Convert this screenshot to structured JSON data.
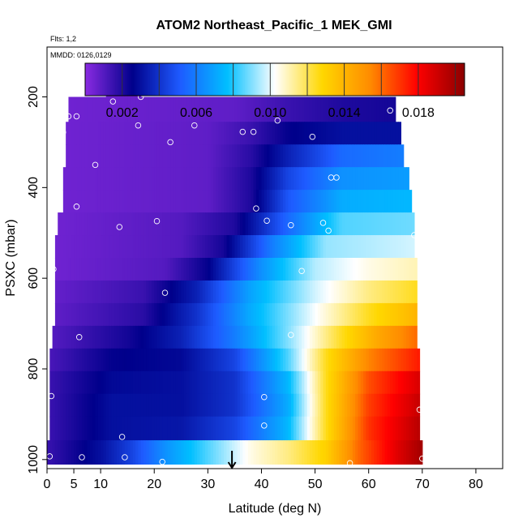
{
  "chart_data": {
    "type": "heatmap",
    "title": "ATOM2 Northeast_Pacific_1 MEK_GMI",
    "subtitle_lines": [
      "Flts: 1,2",
      "MMDD: 0126,0129"
    ],
    "xlabel": "Latitude (deg N)",
    "ylabel": "PSXC (mbar)",
    "xlim": [
      0,
      85
    ],
    "ylim": [
      1020,
      90
    ],
    "x_ticks": [
      0,
      5,
      10,
      20,
      30,
      40,
      50,
      60,
      70,
      80
    ],
    "y_ticks": [
      200,
      400,
      600,
      800,
      1000
    ],
    "colorbar": {
      "range": [
        0,
        0.0205
      ],
      "ticks": [
        "0.002",
        "0.006",
        "0.010",
        "0.014",
        "0.018"
      ],
      "tick_values": [
        0.002,
        0.006,
        0.01,
        0.014,
        0.018
      ],
      "breaks": [
        0.002,
        0.004,
        0.006,
        0.008,
        0.01,
        0.012,
        0.014,
        0.016,
        0.018,
        0.02
      ],
      "colors": [
        "#8a2be2",
        "#00008b",
        "#1e5bff",
        "#00bfff",
        "#ffffff",
        "#ffd700",
        "#ff8c00",
        "#ff0000",
        "#8b0000"
      ]
    },
    "marker": {
      "x": 34.5,
      "label": "arrow"
    },
    "rows": [
      {
        "p": 170,
        "x0": 11.0,
        "x1": 17.5,
        "grad": [
          [
            11,
            0.0005
          ],
          [
            17.5,
            0.0005
          ]
        ]
      },
      {
        "p": 230,
        "x0": 4.0,
        "x1": 65.0,
        "grad": [
          [
            4,
            0.0005
          ],
          [
            35,
            0.0008
          ],
          [
            45,
            0.0015
          ],
          [
            55,
            0.002
          ],
          [
            65,
            0.0022
          ]
        ]
      },
      {
        "p": 280,
        "x0": 3.5,
        "x1": 66.0,
        "grad": [
          [
            3.5,
            0.0005
          ],
          [
            30,
            0.0008
          ],
          [
            38,
            0.0015
          ],
          [
            45,
            0.0025
          ],
          [
            55,
            0.003
          ],
          [
            66,
            0.003
          ]
        ]
      },
      {
        "p": 330,
        "x0": 3.5,
        "x1": 66.5,
        "grad": [
          [
            3.5,
            0.0005
          ],
          [
            30,
            0.0008
          ],
          [
            38,
            0.0018
          ],
          [
            45,
            0.0035
          ],
          [
            55,
            0.0055
          ],
          [
            66.5,
            0.006
          ]
        ]
      },
      {
        "p": 380,
        "x0": 3.0,
        "x1": 67.5,
        "grad": [
          [
            3,
            0.0005
          ],
          [
            30,
            0.0008
          ],
          [
            38,
            0.002
          ],
          [
            45,
            0.0045
          ],
          [
            55,
            0.0065
          ],
          [
            67.5,
            0.0068
          ]
        ]
      },
      {
        "p": 430,
        "x0": 3.0,
        "x1": 68.0,
        "grad": [
          [
            3,
            0.0005
          ],
          [
            30,
            0.0008
          ],
          [
            38,
            0.002
          ],
          [
            45,
            0.005
          ],
          [
            55,
            0.0072
          ],
          [
            68,
            0.0075
          ]
        ]
      },
      {
        "p": 480,
        "x0": 2.0,
        "x1": 68.5,
        "grad": [
          [
            2,
            0.0005
          ],
          [
            25,
            0.001
          ],
          [
            35,
            0.002
          ],
          [
            45,
            0.0055
          ],
          [
            55,
            0.0085
          ],
          [
            68.5,
            0.0088
          ]
        ]
      },
      {
        "p": 530,
        "x0": 1.5,
        "x1": 68.5,
        "grad": [
          [
            1.5,
            0.0005
          ],
          [
            25,
            0.001
          ],
          [
            33,
            0.0022
          ],
          [
            42,
            0.006
          ],
          [
            52,
            0.0092
          ],
          [
            68.5,
            0.0098
          ]
        ]
      },
      {
        "p": 580,
        "x0": 1.5,
        "x1": 69.0,
        "grad": [
          [
            1.5,
            0.0005
          ],
          [
            22,
            0.001
          ],
          [
            30,
            0.0025
          ],
          [
            40,
            0.0065
          ],
          [
            50,
            0.0095
          ],
          [
            60,
            0.0105
          ],
          [
            69,
            0.011
          ]
        ]
      },
      {
        "p": 630,
        "x0": 1.5,
        "x1": 69.0,
        "grad": [
          [
            1.5,
            0.0007
          ],
          [
            18,
            0.0015
          ],
          [
            28,
            0.0035
          ],
          [
            38,
            0.007
          ],
          [
            50,
            0.0098
          ],
          [
            60,
            0.0115
          ],
          [
            69,
            0.0125
          ]
        ]
      },
      {
        "p": 680,
        "x0": 1.5,
        "x1": 69.0,
        "grad": [
          [
            1.5,
            0.0008
          ],
          [
            18,
            0.0018
          ],
          [
            28,
            0.004
          ],
          [
            38,
            0.0072
          ],
          [
            50,
            0.0102
          ],
          [
            60,
            0.0125
          ],
          [
            69,
            0.014
          ]
        ]
      },
      {
        "p": 730,
        "x0": 1.0,
        "x1": 69.0,
        "grad": [
          [
            1,
            0.001
          ],
          [
            15,
            0.0022
          ],
          [
            25,
            0.0035
          ],
          [
            35,
            0.006
          ],
          [
            45,
            0.009
          ],
          [
            55,
            0.0125
          ],
          [
            62,
            0.0145
          ],
          [
            69,
            0.016
          ]
        ]
      },
      {
        "p": 780,
        "x0": 0.5,
        "x1": 69.5,
        "grad": [
          [
            0.5,
            0.0012
          ],
          [
            12,
            0.0025
          ],
          [
            25,
            0.0028
          ],
          [
            35,
            0.0045
          ],
          [
            45,
            0.0085
          ],
          [
            52,
            0.0125
          ],
          [
            60,
            0.0155
          ],
          [
            69.5,
            0.0175
          ]
        ]
      },
      {
        "p": 830,
        "x0": 0.5,
        "x1": 69.5,
        "grad": [
          [
            0.5,
            0.0015
          ],
          [
            12,
            0.0028
          ],
          [
            25,
            0.003
          ],
          [
            35,
            0.004
          ],
          [
            45,
            0.0075
          ],
          [
            52,
            0.0125
          ],
          [
            60,
            0.0165
          ],
          [
            69.5,
            0.0188
          ]
        ]
      },
      {
        "p": 880,
        "x0": 0.5,
        "x1": 69.5,
        "grad": [
          [
            0.5,
            0.0015
          ],
          [
            12,
            0.003
          ],
          [
            25,
            0.003
          ],
          [
            35,
            0.004
          ],
          [
            45,
            0.0072
          ],
          [
            52,
            0.0125
          ],
          [
            60,
            0.0168
          ],
          [
            69.5,
            0.0192
          ]
        ]
      },
      {
        "p": 930,
        "x0": 0.5,
        "x1": 69.5,
        "grad": [
          [
            0.5,
            0.0015
          ],
          [
            12,
            0.003
          ],
          [
            25,
            0.0032
          ],
          [
            35,
            0.0045
          ],
          [
            45,
            0.0075
          ],
          [
            52,
            0.0125
          ],
          [
            60,
            0.017
          ],
          [
            69.5,
            0.0195
          ]
        ]
      },
      {
        "p": 985,
        "x0": 0.0,
        "x1": 70.0,
        "grad": [
          [
            0,
            0.0015
          ],
          [
            10,
            0.003
          ],
          [
            16,
            0.0045
          ],
          [
            22,
            0.0065
          ],
          [
            30,
            0.0085
          ],
          [
            38,
            0.0105
          ],
          [
            45,
            0.0115
          ],
          [
            52,
            0.013
          ],
          [
            58,
            0.016
          ],
          [
            65,
            0.0185
          ],
          [
            70,
            0.02
          ]
        ]
      }
    ],
    "points": [
      {
        "x": 12.3,
        "y": 210
      },
      {
        "x": 17.5,
        "y": 200
      },
      {
        "x": 4.0,
        "y": 243
      },
      {
        "x": 5.5,
        "y": 243
      },
      {
        "x": 3.0,
        "y": 278
      },
      {
        "x": 17.0,
        "y": 263
      },
      {
        "x": 27.5,
        "y": 263
      },
      {
        "x": 23.0,
        "y": 300
      },
      {
        "x": 36.5,
        "y": 277
      },
      {
        "x": 38.5,
        "y": 277
      },
      {
        "x": 43.0,
        "y": 252
      },
      {
        "x": 49.5,
        "y": 288
      },
      {
        "x": 64.0,
        "y": 230
      },
      {
        "x": 9.0,
        "y": 350
      },
      {
        "x": 53.0,
        "y": 378
      },
      {
        "x": 54.0,
        "y": 378
      },
      {
        "x": 5.5,
        "y": 442
      },
      {
        "x": 39.0,
        "y": 446
      },
      {
        "x": 41.0,
        "y": 473
      },
      {
        "x": 45.5,
        "y": 483
      },
      {
        "x": 51.5,
        "y": 478
      },
      {
        "x": 52.5,
        "y": 495
      },
      {
        "x": 1.0,
        "y": 484
      },
      {
        "x": 13.5,
        "y": 487
      },
      {
        "x": 20.5,
        "y": 474
      },
      {
        "x": 68.5,
        "y": 505
      },
      {
        "x": 1.2,
        "y": 580
      },
      {
        "x": 47.5,
        "y": 584
      },
      {
        "x": 22.0,
        "y": 632
      },
      {
        "x": 6.0,
        "y": 730
      },
      {
        "x": 45.5,
        "y": 725
      },
      {
        "x": 0.8,
        "y": 860
      },
      {
        "x": 40.5,
        "y": 862
      },
      {
        "x": 40.5,
        "y": 925
      },
      {
        "x": 69.5,
        "y": 890
      },
      {
        "x": 14.0,
        "y": 950
      },
      {
        "x": 0.5,
        "y": 993
      },
      {
        "x": 6.5,
        "y": 995
      },
      {
        "x": 14.5,
        "y": 995
      },
      {
        "x": 21.5,
        "y": 1005
      },
      {
        "x": 56.5,
        "y": 1008
      },
      {
        "x": 70.0,
        "y": 998
      }
    ]
  }
}
